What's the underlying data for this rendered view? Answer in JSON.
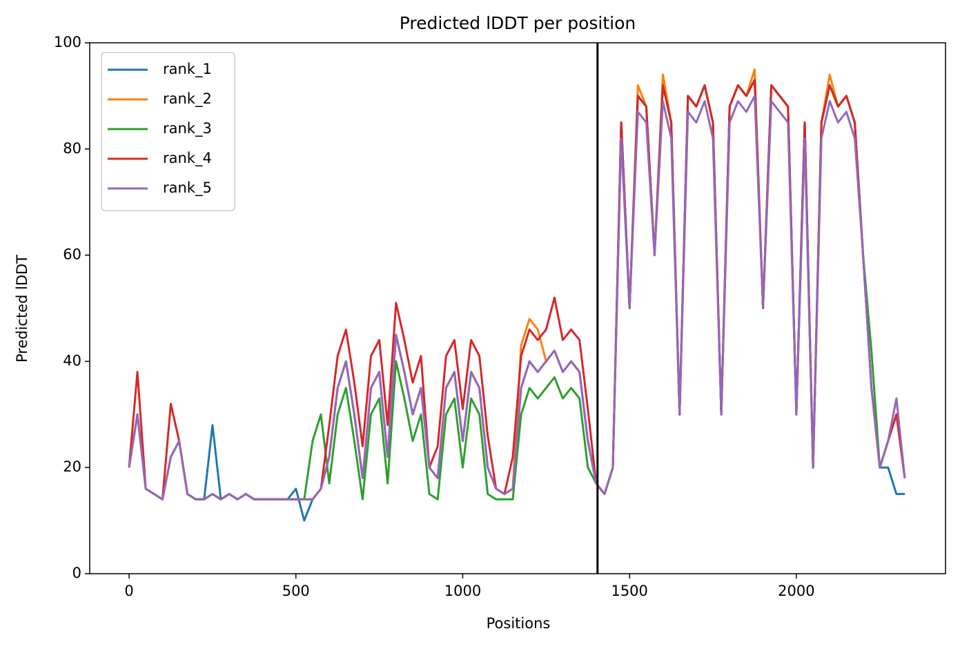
{
  "chart_data": {
    "type": "line",
    "title": "Predicted lDDT per position",
    "xlabel": "Positions",
    "ylabel": "Predicted lDDT",
    "x": [
      0,
      25,
      50,
      75,
      100,
      125,
      150,
      175,
      200,
      225,
      250,
      275,
      300,
      325,
      350,
      375,
      400,
      425,
      450,
      475,
      500,
      525,
      550,
      575,
      600,
      625,
      650,
      675,
      700,
      725,
      750,
      775,
      800,
      825,
      850,
      875,
      900,
      925,
      950,
      975,
      1000,
      1025,
      1050,
      1075,
      1100,
      1125,
      1150,
      1175,
      1200,
      1225,
      1250,
      1275,
      1300,
      1325,
      1350,
      1375,
      1400,
      1425,
      1450,
      1475,
      1500,
      1525,
      1550,
      1575,
      1600,
      1625,
      1650,
      1675,
      1700,
      1725,
      1750,
      1775,
      1800,
      1825,
      1850,
      1875,
      1900,
      1925,
      1950,
      1975,
      2000,
      2025,
      2050,
      2075,
      2100,
      2125,
      2150,
      2175,
      2200,
      2225,
      2250,
      2275,
      2300,
      2325
    ],
    "series": [
      {
        "name": "rank_1",
        "color": "#1f77b4",
        "values": [
          20,
          30,
          16,
          15,
          14,
          22,
          25,
          15,
          14,
          14,
          28,
          14,
          15,
          14,
          15,
          14,
          14,
          14,
          14,
          14,
          16,
          10,
          14,
          16,
          22,
          35,
          40,
          30,
          18,
          35,
          38,
          22,
          45,
          38,
          30,
          35,
          20,
          18,
          35,
          38,
          25,
          38,
          35,
          20,
          16,
          15,
          16,
          35,
          40,
          38,
          40,
          42,
          38,
          40,
          38,
          25,
          17,
          15,
          20,
          85,
          50,
          90,
          88,
          60,
          92,
          85,
          30,
          90,
          88,
          92,
          85,
          30,
          88,
          92,
          90,
          93,
          50,
          92,
          90,
          88,
          30,
          85,
          20,
          85,
          92,
          88,
          90,
          85,
          60,
          35,
          20,
          20,
          15,
          15
        ]
      },
      {
        "name": "rank_2",
        "color": "#ff7f0e",
        "values": [
          20,
          30,
          16,
          15,
          14,
          22,
          25,
          15,
          14,
          14,
          15,
          14,
          15,
          14,
          15,
          14,
          14,
          14,
          14,
          14,
          14,
          14,
          14,
          16,
          22,
          35,
          40,
          30,
          18,
          35,
          38,
          22,
          45,
          38,
          30,
          35,
          20,
          18,
          35,
          38,
          25,
          38,
          35,
          20,
          16,
          15,
          16,
          43,
          48,
          46,
          40,
          42,
          38,
          40,
          38,
          25,
          17,
          15,
          20,
          85,
          50,
          92,
          88,
          60,
          94,
          85,
          30,
          90,
          88,
          92,
          85,
          30,
          88,
          92,
          90,
          95,
          50,
          92,
          90,
          88,
          30,
          85,
          20,
          85,
          94,
          88,
          90,
          85,
          60,
          35,
          20,
          25,
          30,
          18
        ]
      },
      {
        "name": "rank_3",
        "color": "#2ca02c",
        "values": [
          20,
          30,
          16,
          15,
          14,
          22,
          25,
          15,
          14,
          14,
          15,
          14,
          15,
          14,
          15,
          14,
          14,
          14,
          14,
          14,
          14,
          14,
          25,
          30,
          17,
          30,
          35,
          25,
          14,
          30,
          33,
          17,
          40,
          33,
          25,
          30,
          15,
          14,
          30,
          33,
          20,
          33,
          30,
          15,
          14,
          14,
          14,
          30,
          35,
          33,
          35,
          37,
          33,
          35,
          33,
          20,
          17,
          15,
          20,
          85,
          50,
          90,
          88,
          60,
          92,
          85,
          30,
          90,
          88,
          92,
          85,
          30,
          88,
          92,
          90,
          93,
          50,
          92,
          90,
          88,
          30,
          85,
          20,
          85,
          92,
          88,
          90,
          85,
          60,
          42,
          20,
          25,
          30,
          18
        ]
      },
      {
        "name": "rank_4",
        "color": "#d62728",
        "values": [
          20,
          38,
          16,
          15,
          14,
          32,
          25,
          15,
          14,
          14,
          15,
          14,
          15,
          14,
          15,
          14,
          14,
          14,
          14,
          14,
          14,
          14,
          14,
          16,
          28,
          41,
          46,
          36,
          24,
          41,
          44,
          28,
          51,
          44,
          36,
          41,
          20,
          24,
          41,
          44,
          31,
          44,
          41,
          26,
          16,
          15,
          22,
          41,
          46,
          44,
          46,
          52,
          44,
          46,
          44,
          31,
          17,
          15,
          20,
          85,
          50,
          90,
          88,
          60,
          92,
          85,
          30,
          90,
          88,
          92,
          85,
          30,
          88,
          92,
          90,
          93,
          50,
          92,
          90,
          88,
          30,
          85,
          20,
          85,
          92,
          88,
          90,
          85,
          60,
          35,
          20,
          25,
          30,
          18
        ]
      },
      {
        "name": "rank_5",
        "color": "#9467bd",
        "values": [
          20,
          30,
          16,
          15,
          14,
          22,
          25,
          15,
          14,
          14,
          15,
          14,
          15,
          14,
          15,
          14,
          14,
          14,
          14,
          14,
          14,
          14,
          14,
          16,
          22,
          35,
          40,
          30,
          18,
          35,
          38,
          22,
          45,
          38,
          30,
          35,
          20,
          18,
          35,
          38,
          25,
          38,
          35,
          20,
          16,
          15,
          16,
          35,
          40,
          38,
          40,
          42,
          38,
          40,
          38,
          25,
          17,
          15,
          20,
          82,
          50,
          87,
          85,
          60,
          89,
          82,
          30,
          87,
          85,
          89,
          82,
          30,
          85,
          89,
          87,
          90,
          50,
          89,
          87,
          85,
          30,
          82,
          20,
          82,
          89,
          85,
          87,
          82,
          60,
          35,
          20,
          25,
          33,
          18
        ]
      }
    ],
    "vline": 1404,
    "xlim": [
      -118,
      2447
    ],
    "ylim": [
      0,
      100
    ],
    "xticks": [
      0,
      500,
      1000,
      1500,
      2000
    ],
    "yticks": [
      0,
      20,
      40,
      60,
      80,
      100
    ],
    "legend": "upper left"
  }
}
